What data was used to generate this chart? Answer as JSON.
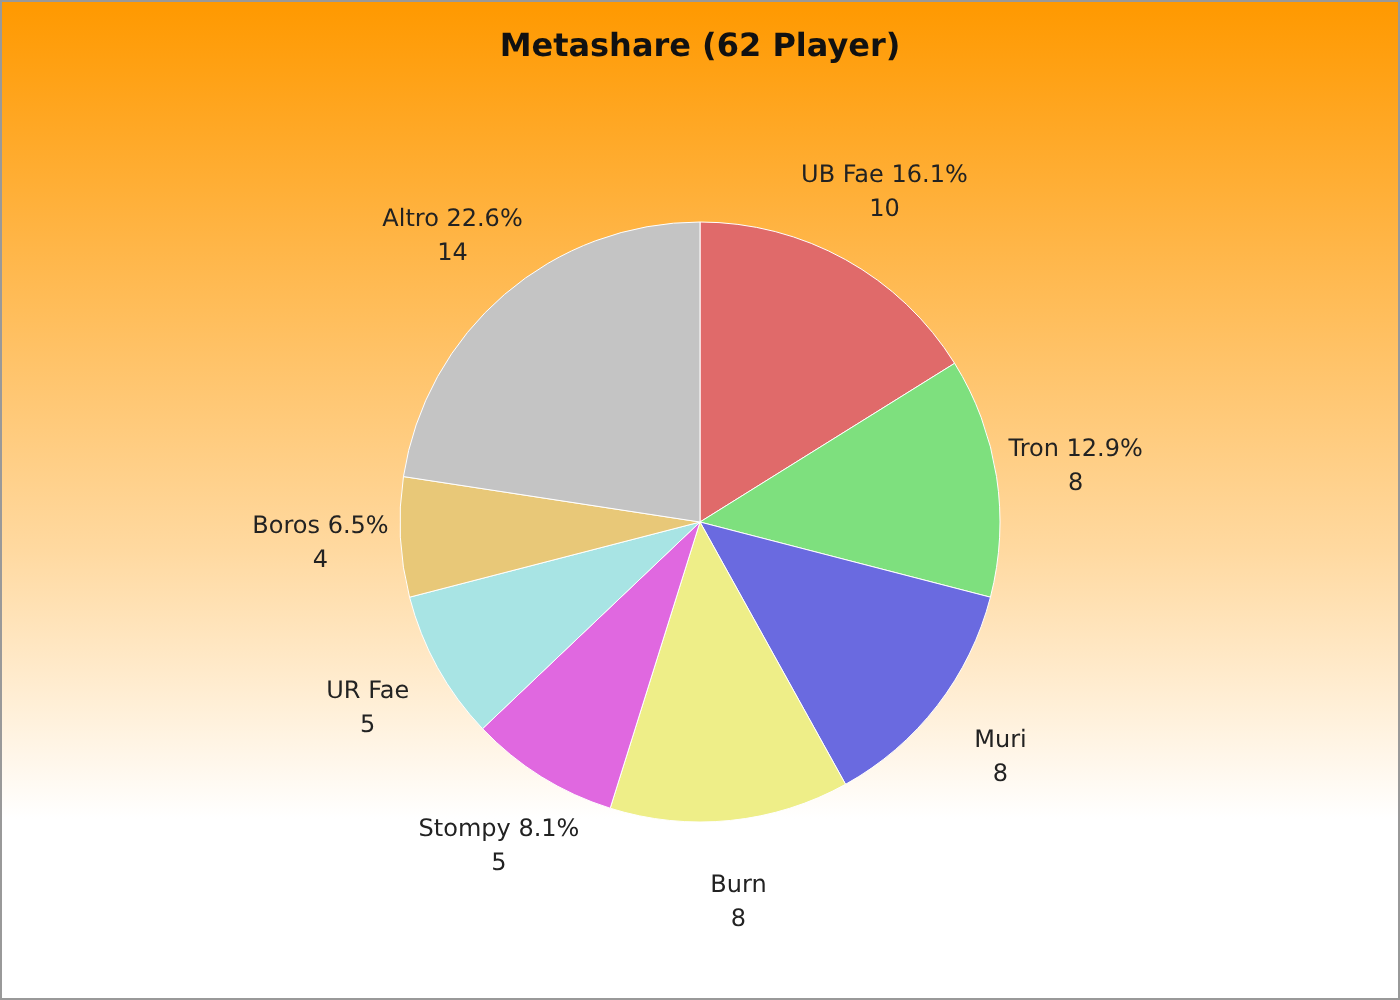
{
  "chart_data": {
    "type": "pie",
    "title": "Metashare (62 Player)",
    "categories": [
      "UB Fae 16.1%",
      "Tron 12.9%",
      "Muri",
      "Burn",
      "Stompy 8.1%",
      "UR Fae",
      "Boros 6.5%",
      "Altro 22.6%"
    ],
    "values": [
      10,
      8,
      8,
      8,
      5,
      5,
      4,
      14
    ],
    "colors": [
      "#e06a6a",
      "#7ee07e",
      "#6a6ae0",
      "#eeee88",
      "#e068e0",
      "#a8e4e4",
      "#e8c878",
      "#c4c4c4"
    ],
    "data_labels": true
  }
}
